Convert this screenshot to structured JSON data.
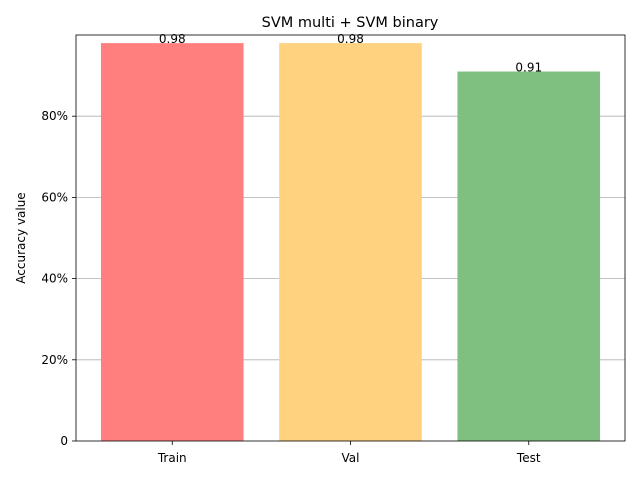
{
  "chart_data": {
    "type": "bar",
    "title": "SVM multi + SVM binary",
    "xlabel": "",
    "ylabel": "Accuracy value",
    "categories": [
      "Train",
      "Val",
      "Test"
    ],
    "values": [
      0.98,
      0.98,
      0.91
    ],
    "data_labels": [
      "0.98",
      "0.98",
      "0.91"
    ],
    "colors": [
      "#ff7f7f",
      "#ffd27f",
      "#7fbf7f"
    ],
    "ylim": [
      0,
      1.0
    ],
    "yticks": [
      0,
      0.2,
      0.4,
      0.6,
      0.8
    ],
    "ytick_labels": [
      "0",
      "20%",
      "40%",
      "60%",
      "80%"
    ],
    "grid": "horizontal",
    "legend": "none"
  }
}
